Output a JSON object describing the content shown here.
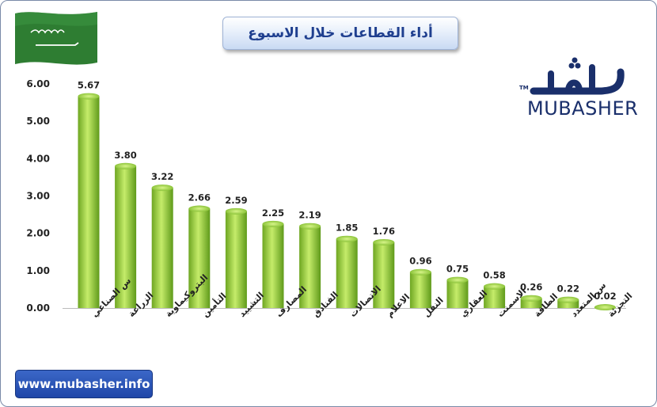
{
  "header": {
    "title": "أداء القطاعات خلال الاسبوع"
  },
  "branding": {
    "logo_arabic": "مباشر",
    "logo_latin": "MUBASHER",
    "logo_tm": "TM",
    "website": "www.mubasher.info"
  },
  "flag": {
    "icon": "saudi-flag-icon",
    "color": "#2e7d32"
  },
  "colors": {
    "bar_light": "#b5e05a",
    "bar_dark": "#5f9a1a",
    "accent": "#1f46a8"
  },
  "chart_data": {
    "type": "bar",
    "categories": [
      "س الصناعي",
      "الزراعة",
      "البتروكيماوية",
      "التأمين",
      "التشييد",
      "المصارف",
      "الفنادق",
      "الاتصالات",
      "الاعلام",
      "النقل",
      "العقاري",
      "الاسمنت",
      "الطاقة",
      "س المتعدد",
      "التجزئة"
    ],
    "values": [
      5.67,
      3.8,
      3.22,
      2.66,
      2.59,
      2.25,
      2.19,
      1.85,
      1.76,
      0.96,
      0.75,
      0.58,
      0.26,
      0.22,
      0.02
    ],
    "value_labels": [
      "5.67",
      "3.80",
      "3.22",
      "2.66",
      "2.59",
      "2.25",
      "2.19",
      "1.85",
      "1.76",
      "0.96",
      "0.75",
      "0.58",
      "0.26",
      "0.22",
      "0.02"
    ],
    "y_ticks": [
      "0.00",
      "1.00",
      "2.00",
      "3.00",
      "4.00",
      "5.00",
      "6.00"
    ],
    "ylim": [
      0,
      6
    ],
    "grid": false,
    "title": "",
    "xlabel": "",
    "ylabel": ""
  }
}
